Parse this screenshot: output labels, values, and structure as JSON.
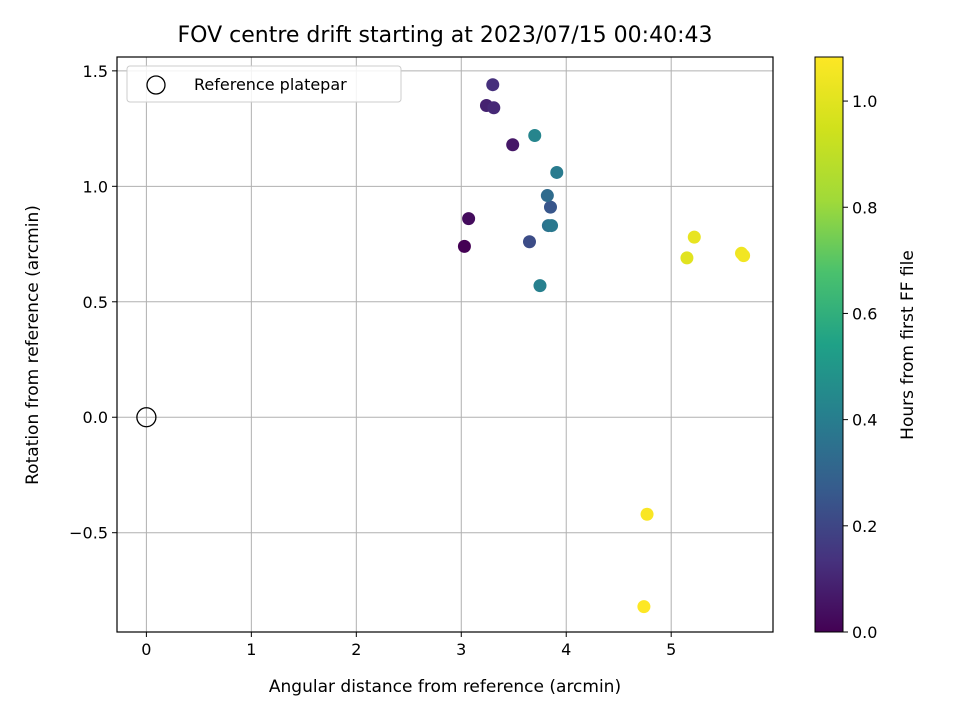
{
  "chart_data": {
    "type": "scatter",
    "title": "FOV centre drift starting at 2023/07/15 00:40:43",
    "xlabel": "Angular distance from reference (arcmin)",
    "ylabel": "Rotation from reference (arcmin)",
    "xlim": [
      -0.28,
      5.97
    ],
    "ylim": [
      -0.93,
      1.56
    ],
    "xticks": [
      0,
      1,
      2,
      3,
      4,
      5
    ],
    "xtick_labels": [
      "0",
      "1",
      "2",
      "3",
      "4",
      "5"
    ],
    "yticks": [
      -0.5,
      0.0,
      0.5,
      1.0,
      1.5
    ],
    "ytick_labels": [
      "−0.5",
      "0.0",
      "0.5",
      "1.0",
      "1.5"
    ],
    "grid": true,
    "legend": {
      "placement": "top-left",
      "entries": [
        "Reference platepar"
      ]
    },
    "reference_point": {
      "x": 0.0,
      "y": 0.0,
      "marker": "open-circle"
    },
    "colorbar": {
      "label": "Hours from first FF file",
      "colormap": "viridis",
      "range": [
        0.0,
        1.083
      ],
      "ticks": [
        0.0,
        0.2,
        0.4,
        0.6,
        0.8,
        1.0
      ],
      "tick_labels": [
        "0.0",
        "0.2",
        "0.4",
        "0.6",
        "0.8",
        "1.0"
      ]
    },
    "points": [
      {
        "x": 3.03,
        "y": 0.74,
        "hours": 0.0
      },
      {
        "x": 3.07,
        "y": 0.86,
        "hours": 0.03
      },
      {
        "x": 3.49,
        "y": 1.18,
        "hours": 0.06
      },
      {
        "x": 3.24,
        "y": 1.35,
        "hours": 0.09
      },
      {
        "x": 3.31,
        "y": 1.34,
        "hours": 0.11
      },
      {
        "x": 3.3,
        "y": 1.44,
        "hours": 0.13
      },
      {
        "x": 3.65,
        "y": 0.76,
        "hours": 0.22
      },
      {
        "x": 3.85,
        "y": 0.91,
        "hours": 0.25
      },
      {
        "x": 3.82,
        "y": 0.96,
        "hours": 0.33
      },
      {
        "x": 3.83,
        "y": 0.83,
        "hours": 0.36
      },
      {
        "x": 3.86,
        "y": 0.83,
        "hours": 0.38
      },
      {
        "x": 3.91,
        "y": 1.06,
        "hours": 0.39
      },
      {
        "x": 3.75,
        "y": 0.57,
        "hours": 0.41
      },
      {
        "x": 3.7,
        "y": 1.22,
        "hours": 0.43
      },
      {
        "x": 5.15,
        "y": 0.69,
        "hours": 1.0
      },
      {
        "x": 5.22,
        "y": 0.78,
        "hours": 1.02
      },
      {
        "x": 5.67,
        "y": 0.71,
        "hours": 1.04
      },
      {
        "x": 5.69,
        "y": 0.7,
        "hours": 1.05
      },
      {
        "x": 4.77,
        "y": -0.42,
        "hours": 1.07
      },
      {
        "x": 4.74,
        "y": -0.82,
        "hours": 1.083
      }
    ]
  }
}
